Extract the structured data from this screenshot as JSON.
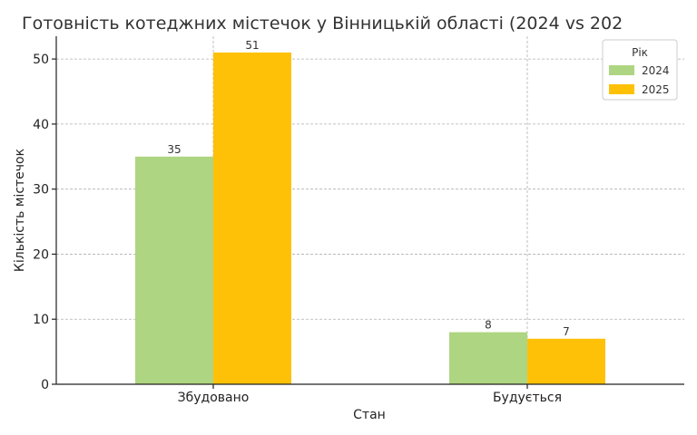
{
  "chart_data": {
    "type": "bar",
    "title": "Готовність котеджних містечок у Вінницькій області (2024 vs 202",
    "xlabel": "Стан",
    "ylabel": "Кількість містечок",
    "categories": [
      "Збудовано",
      "Будується"
    ],
    "series": [
      {
        "name": "2024",
        "values": [
          35,
          8
        ],
        "color": "#aed581"
      },
      {
        "name": "2025",
        "values": [
          51,
          7
        ],
        "color": "#ffc107"
      }
    ],
    "ylim": [
      0,
      53.5
    ],
    "yticks": [
      0,
      10,
      20,
      30,
      40,
      50
    ],
    "legend_title": "Рік",
    "legend_position": "top-right",
    "grid": true
  }
}
